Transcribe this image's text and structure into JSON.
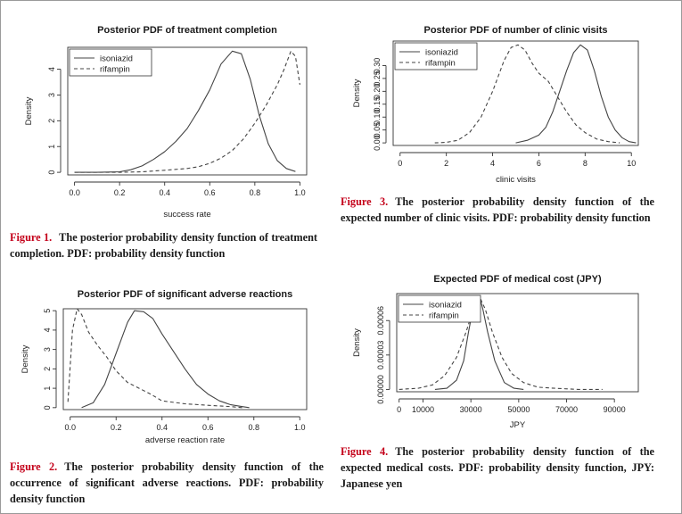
{
  "chart_data": [
    {
      "type": "line",
      "title": "Posterior PDF of treatment completion",
      "xlabel": "success rate",
      "ylabel": "Density",
      "xlim": [
        -0.03,
        1.03
      ],
      "ylim": [
        -0.1,
        4.85
      ],
      "xticks": [
        0,
        0.2,
        0.4,
        0.6,
        0.8,
        1.0
      ],
      "xtick_labels": [
        "0.0",
        "0.2",
        "0.4",
        "0.6",
        "0.8",
        "1.0"
      ],
      "yticks": [
        0,
        1,
        2,
        3,
        4
      ],
      "ytick_labels": [
        "0",
        "1",
        "2",
        "3",
        "4"
      ],
      "legend_position": "top-left",
      "series": [
        {
          "name": "isoniazid",
          "style": "solid",
          "x": [
            0,
            0.1,
            0.2,
            0.25,
            0.3,
            0.35,
            0.4,
            0.45,
            0.5,
            0.55,
            0.6,
            0.65,
            0.7,
            0.74,
            0.78,
            0.82,
            0.86,
            0.9,
            0.94,
            0.98
          ],
          "y": [
            0,
            0,
            0.02,
            0.1,
            0.25,
            0.5,
            0.8,
            1.2,
            1.7,
            2.4,
            3.2,
            4.2,
            4.7,
            4.6,
            3.6,
            2.2,
            1.1,
            0.45,
            0.15,
            0.03
          ]
        },
        {
          "name": "rifampin",
          "style": "dashed",
          "x": [
            0,
            0.2,
            0.3,
            0.4,
            0.5,
            0.55,
            0.6,
            0.65,
            0.7,
            0.75,
            0.8,
            0.85,
            0.9,
            0.93,
            0.96,
            0.98,
            1.0
          ],
          "y": [
            0,
            0,
            0.02,
            0.08,
            0.15,
            0.22,
            0.35,
            0.55,
            0.85,
            1.3,
            1.9,
            2.6,
            3.4,
            4.0,
            4.7,
            4.5,
            3.4
          ]
        }
      ]
    },
    {
      "type": "line",
      "title": "Posterior PDF of significant adverse reactions",
      "xlabel": "adverse reaction rate",
      "ylabel": "Density",
      "xlim": [
        -0.03,
        1.03
      ],
      "ylim": [
        -0.1,
        5.1
      ],
      "xticks": [
        0,
        0.2,
        0.4,
        0.6,
        0.8,
        1.0
      ],
      "xtick_labels": [
        "0.0",
        "0.2",
        "0.4",
        "0.6",
        "0.8",
        "1.0"
      ],
      "yticks": [
        0,
        1,
        2,
        3,
        4,
        5
      ],
      "ytick_labels": [
        "0",
        "1",
        "2",
        "3",
        "4",
        "5"
      ],
      "legend_position": "none",
      "series": [
        {
          "name": "isoniazid",
          "style": "solid",
          "x": [
            0.05,
            0.1,
            0.15,
            0.2,
            0.25,
            0.28,
            0.32,
            0.36,
            0.4,
            0.45,
            0.5,
            0.55,
            0.6,
            0.65,
            0.7,
            0.75,
            0.78
          ],
          "y": [
            0,
            0.25,
            1.2,
            2.8,
            4.4,
            5.0,
            4.95,
            4.6,
            3.8,
            2.9,
            2.0,
            1.2,
            0.7,
            0.35,
            0.15,
            0.05,
            0
          ]
        },
        {
          "name": "rifampin",
          "style": "dashed",
          "x": [
            -0.01,
            0.01,
            0.03,
            0.05,
            0.08,
            0.12,
            0.16,
            0.2,
            0.25,
            0.3,
            0.35,
            0.4,
            0.5,
            0.6,
            0.7,
            0.75
          ],
          "y": [
            0.3,
            4.0,
            5.1,
            4.8,
            3.9,
            3.2,
            2.6,
            1.9,
            1.3,
            1.0,
            0.7,
            0.35,
            0.2,
            0.12,
            0.05,
            0
          ]
        }
      ]
    },
    {
      "type": "line",
      "title": "Posterior PDF of number of clinic visits",
      "xlabel": "clinic visits",
      "ylabel": "Density",
      "xlim": [
        -0.3,
        10.3
      ],
      "ylim": [
        -0.01,
        0.395
      ],
      "xticks": [
        0,
        2,
        4,
        6,
        8,
        10
      ],
      "xtick_labels": [
        "0",
        "2",
        "4",
        "6",
        "8",
        "10"
      ],
      "yticks": [
        0,
        0.05,
        0.1,
        0.15,
        0.2,
        0.25,
        0.3
      ],
      "ytick_labels": [
        "0.00",
        "0.05",
        "0.10",
        "0.15",
        "0.20",
        "0.25",
        "0.30"
      ],
      "legend_position": "top-left",
      "series": [
        {
          "name": "isoniazid",
          "style": "solid",
          "x": [
            5.0,
            5.5,
            6.0,
            6.3,
            6.6,
            6.9,
            7.2,
            7.5,
            7.8,
            8.1,
            8.4,
            8.7,
            9.0,
            9.3,
            9.6,
            9.9,
            10.2
          ],
          "y": [
            0,
            0.01,
            0.03,
            0.06,
            0.12,
            0.2,
            0.28,
            0.35,
            0.38,
            0.36,
            0.28,
            0.18,
            0.1,
            0.05,
            0.02,
            0.005,
            0
          ]
        },
        {
          "name": "rifampin",
          "style": "dashed",
          "x": [
            1.5,
            2.0,
            2.5,
            3.0,
            3.5,
            4.0,
            4.5,
            4.8,
            5.1,
            5.4,
            5.7,
            6.0,
            6.4,
            6.8,
            7.2,
            7.6,
            8.0,
            8.5,
            9.0,
            9.5
          ],
          "y": [
            0,
            0.002,
            0.01,
            0.04,
            0.1,
            0.2,
            0.32,
            0.37,
            0.38,
            0.36,
            0.31,
            0.27,
            0.24,
            0.18,
            0.12,
            0.07,
            0.04,
            0.015,
            0.005,
            0
          ]
        }
      ]
    },
    {
      "type": "line",
      "title": "Expected PDF of medical cost (JPY)",
      "xlabel": "JPY",
      "ylabel": "Density",
      "xlim": [
        -1000,
        100000
      ],
      "ylim": [
        -2e-06,
        8.35e-05
      ],
      "xticks": [
        0,
        10000,
        30000,
        50000,
        70000,
        90000
      ],
      "xtick_labels": [
        "0",
        "10000",
        "30000",
        "50000",
        "70000",
        "90000"
      ],
      "yticks": [
        0,
        3e-05,
        6e-05
      ],
      "ytick_labels": [
        "0.00000",
        "0.00003",
        "0.00006"
      ],
      "legend_position": "top-left",
      "series": [
        {
          "name": "isoniazid",
          "style": "solid",
          "x": [
            15000,
            20000,
            24000,
            27000,
            29000,
            31000,
            32000,
            33000,
            34000,
            35000,
            37000,
            40000,
            44000,
            48000,
            52000
          ],
          "y": [
            0,
            1e-06,
            8e-06,
            2.5e-05,
            5e-05,
            7.2e-05,
            8e-05,
            8.1e-05,
            7.8e-05,
            7e-05,
            5e-05,
            2.5e-05,
            6e-06,
            1e-06,
            0
          ]
        },
        {
          "name": "rifampin",
          "style": "dashed",
          "x": [
            0,
            8000,
            14000,
            19000,
            24000,
            28000,
            31000,
            33000,
            34000,
            36000,
            39000,
            43000,
            47000,
            52000,
            58000,
            65000,
            75000,
            85000
          ],
          "y": [
            0,
            1e-06,
            4e-06,
            1.2e-05,
            2.8e-05,
            5e-05,
            7e-05,
            8e-05,
            7.9e-05,
            7e-05,
            5e-05,
            2.8e-05,
            1.4e-05,
            6e-06,
            2e-06,
            1e-06,
            0,
            0
          ]
        }
      ]
    }
  ],
  "captions": [
    {
      "label": "Figure 1.",
      "text": "The posterior probability density function of treatment completion. PDF: probability density function"
    },
    {
      "label": "Figure 2.",
      "text": "The posterior probability density function of the occurrence of significant adverse reactions. PDF: probability density function"
    },
    {
      "label": "Figure 3.",
      "text": "The posterior probability density function of the expected number of clinic visits. PDF: probability density function"
    },
    {
      "label": "Figure 4.",
      "text": "The posterior probability density function of the expected medical costs. PDF: probability density function, JPY: Japanese yen"
    }
  ],
  "colors": {
    "line": "#444444",
    "axis": "#333333",
    "accent": "#c4001a"
  }
}
